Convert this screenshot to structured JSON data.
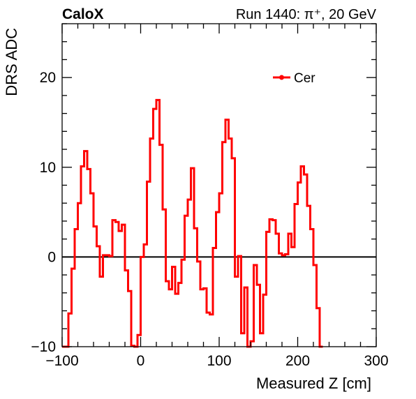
{
  "header": {
    "experiment": "CaloX",
    "run_info": "Run 1440:   π⁺, 20 GeV"
  },
  "colors": {
    "series": "#ff0000",
    "axis": "#000000",
    "background": "#ffffff"
  },
  "chart_data": {
    "type": "line",
    "subtype": "step-histogram",
    "xlabel": "Measured Z [cm]",
    "ylabel": "DRS ADC",
    "xlim": [
      -100,
      300
    ],
    "ylim": [
      -10,
      26
    ],
    "x_ticks": [
      -100,
      0,
      100,
      200,
      300
    ],
    "x_tick_labels": [
      "−100",
      "0",
      "100",
      "200",
      "300"
    ],
    "y_ticks": [
      -10,
      0,
      10,
      20
    ],
    "y_tick_labels": [
      "−10",
      "0",
      "10",
      "20"
    ],
    "grid": false,
    "legend_position": "top-right",
    "zero_line": true,
    "series": [
      {
        "name": "Cer",
        "bin_width": 4,
        "x_start": -100,
        "values": [
          -10,
          -10,
          -6.3,
          -1.3,
          3.1,
          6.0,
          10.1,
          11.8,
          9.8,
          7.1,
          3.4,
          1.2,
          -2.2,
          0.2,
          0.2,
          0.1,
          4.1,
          3.9,
          2.9,
          3.6,
          -1.5,
          -3.8,
          -9.9,
          -10,
          -8.7,
          0,
          1.4,
          8.4,
          13.2,
          16.5,
          17.5,
          12.5,
          5.3,
          -2.7,
          -3.6,
          -1.1,
          -4.1,
          -2.9,
          -0.3,
          4.6,
          6.4,
          9.9,
          3.2,
          -0.5,
          -3.6,
          -3.5,
          -6.2,
          -6.4,
          1.0,
          5.0,
          7.1,
          12.8,
          15.3,
          13.2,
          11.0,
          -2.2,
          0.1,
          -8.5,
          -3.4,
          -10,
          -9.4,
          -0.9,
          -3.1,
          -8.5,
          -4.2,
          2.8,
          4.2,
          4.1,
          2.6,
          0.4,
          0.2,
          0.3,
          2.6,
          1.1,
          5.9,
          8.3,
          10.1,
          9.2,
          5.7,
          3.1,
          -0.9,
          -5.7,
          -10
        ]
      }
    ]
  }
}
